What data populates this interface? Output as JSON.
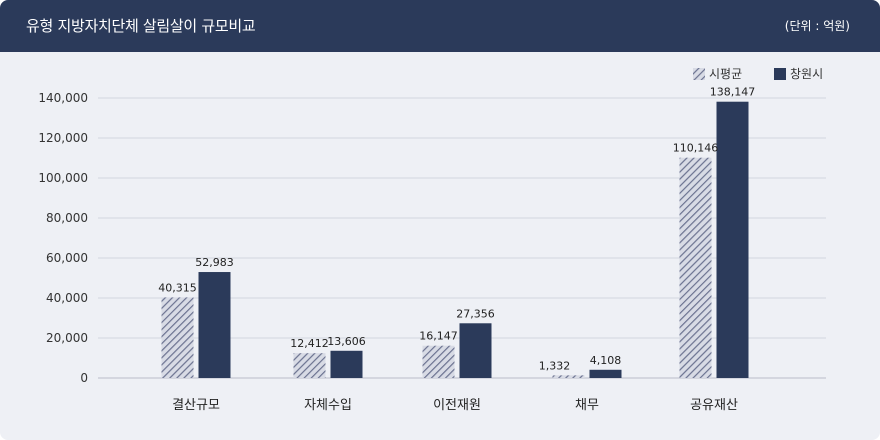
{
  "header": {
    "title": "유형 지방자치단체 살림살이 규모비교",
    "unit": "(단위 : 억원)"
  },
  "colors": {
    "header_bg": "#2b3a5a",
    "panel_bg": "#eef0f5",
    "series_city": "#2b3a5a",
    "series_avg": "#8a90a8"
  },
  "chart_data": {
    "type": "bar",
    "categories": [
      "결산규모",
      "자체수입",
      "이전재원",
      "채무",
      "공유재산"
    ],
    "series": [
      {
        "name": "시평균",
        "pattern": "hatched",
        "values": [
          40315,
          12412,
          16147,
          1332,
          110146
        ],
        "labels": [
          "40,315",
          "12,412",
          "16,147",
          "1,332",
          "110,146"
        ]
      },
      {
        "name": "창원시",
        "pattern": "solid",
        "values": [
          52983,
          13606,
          27356,
          4108,
          138147
        ],
        "labels": [
          "52,983",
          "13,606",
          "27,356",
          "4,108",
          "138,147"
        ]
      }
    ],
    "yticks": [
      "0",
      "20,000",
      "40,000",
      "60,000",
      "80,000",
      "100,000",
      "120,000",
      "140,000"
    ],
    "ylim": [
      0,
      140000
    ],
    "grid": true,
    "legend_position": "top-right"
  }
}
